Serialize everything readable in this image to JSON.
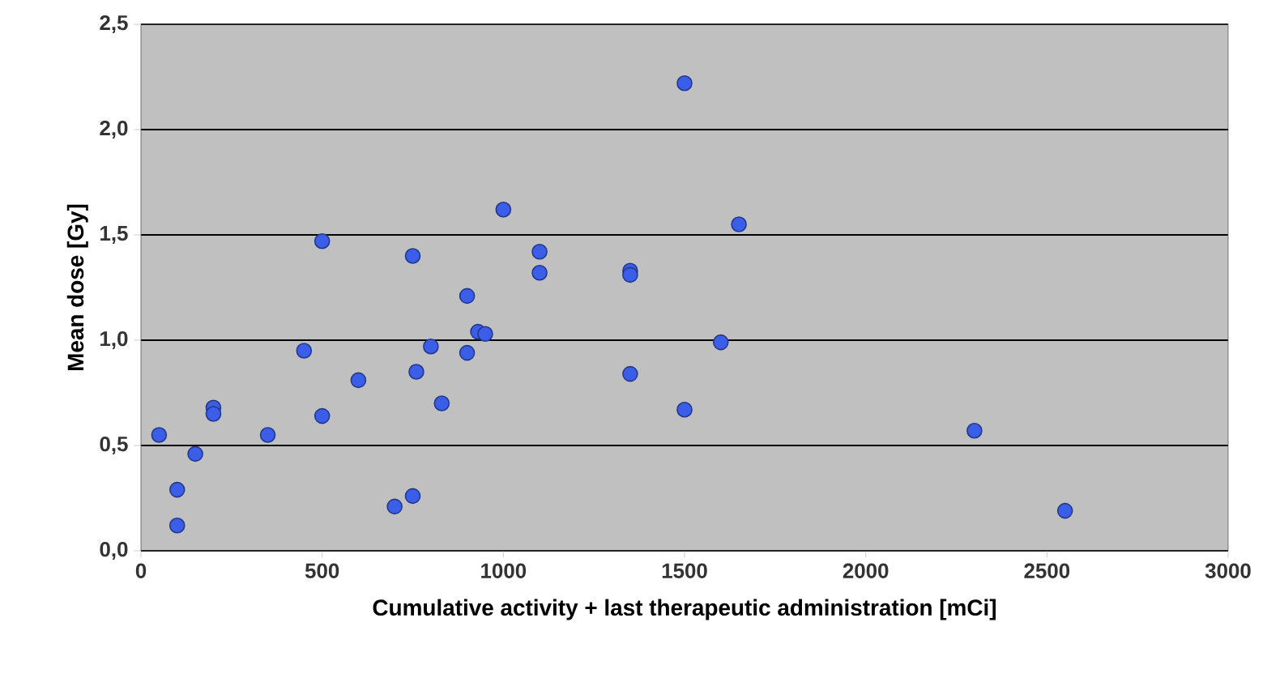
{
  "chart_data": {
    "type": "scatter",
    "xlabel": "Cumulative activity + last therapeutic administration [mCi]",
    "ylabel": "Mean dose [Gy]",
    "x": [
      50,
      100,
      100,
      150,
      200,
      200,
      350,
      450,
      500,
      500,
      600,
      700,
      750,
      750,
      760,
      800,
      830,
      900,
      900,
      930,
      950,
      1000,
      1100,
      1100,
      1350,
      1350,
      1350,
      1500,
      1500,
      1600,
      1650,
      2300,
      2550
    ],
    "values": [
      0.55,
      0.29,
      0.12,
      0.46,
      0.68,
      0.65,
      0.55,
      0.95,
      1.47,
      0.64,
      0.81,
      0.21,
      0.26,
      1.4,
      0.85,
      0.97,
      0.7,
      1.21,
      0.94,
      1.04,
      1.03,
      1.62,
      1.42,
      1.32,
      1.33,
      1.31,
      0.84,
      2.22,
      0.67,
      0.99,
      1.55,
      0.57,
      0.19
    ],
    "color": "#3b5ee8",
    "marker": "circle",
    "grid": "y",
    "xlim": [
      0,
      3000
    ],
    "xticks": [
      0,
      500,
      1000,
      1500,
      2000,
      2500,
      3000
    ],
    "ylim": [
      0,
      2.5
    ],
    "yticks": [
      {
        "value": 0,
        "label": "0,0"
      },
      {
        "value": 0.5,
        "label": "0,5"
      },
      {
        "value": 1,
        "label": "1,0"
      },
      {
        "value": 1.5,
        "label": "1,5"
      },
      {
        "value": 2,
        "label": "2,0"
      },
      {
        "value": 2.5,
        "label": "2,5"
      }
    ]
  }
}
